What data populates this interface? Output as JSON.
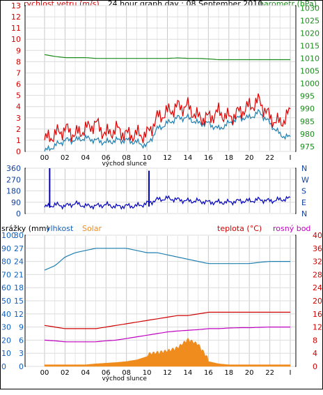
{
  "header": {
    "title": "24 hour graph day : 08 September 2010",
    "left_label": "rychlost vetru (m/s)",
    "right_label": "barometr (hPa)"
  },
  "panel3_labels": {
    "precip": "srážky (mm)",
    "humidity": "vlhkost",
    "solar": "Solar",
    "temp": "teplota (°C)",
    "dew": "rosný bod"
  },
  "x_axis": {
    "ticks": [
      "00",
      "02",
      "04",
      "06",
      "08",
      "10",
      "12",
      "14",
      "16",
      "18",
      "20",
      "22",
      "I"
    ],
    "sunrise_label": "východ slunce"
  },
  "colors": {
    "wind": "#e00000",
    "gust": "#1e7fb0",
    "baro": "#1a8a1a",
    "winddir": "#0000c0",
    "humidity": "#1e7fb0",
    "solar": "#f08c1e",
    "temp": "#d00000",
    "dew": "#c000c0",
    "grid": "#c8c8c8",
    "axis_red": "#d00000",
    "axis_green": "#1a8a1a",
    "axis_blue": "#1060c0"
  },
  "chart_data": [
    {
      "type": "line",
      "id": "wind_baro",
      "title": "24 hour graph day : 08 September 2010",
      "x": [
        0,
        1,
        2,
        3,
        4,
        5,
        6,
        7,
        8,
        9,
        10,
        11,
        12,
        13,
        14,
        15,
        16,
        17,
        18,
        19,
        20,
        21,
        22,
        23,
        24
      ],
      "y_left": {
        "label": "rychlost vetru (m/s)",
        "ticks": [
          "13",
          "12",
          "11",
          "10",
          "9",
          "8",
          "7",
          "6",
          "5",
          "4",
          "3",
          "2",
          "1",
          "0"
        ],
        "ylim": [
          0,
          13
        ]
      },
      "y_right": {
        "label": "barometr (hPa)",
        "ticks": [
          "1030",
          "1025",
          "1020",
          "1015",
          "1010",
          "1005",
          "1000",
          "995",
          "990",
          "985",
          "980",
          "975"
        ],
        "ylim": [
          973,
          1031
        ]
      },
      "series": [
        {
          "key": "wind",
          "axis": "left",
          "values": [
            1,
            1.5,
            2,
            1.5,
            2,
            2.5,
            1.5,
            2,
            1.5,
            1.5,
            1.5,
            3,
            3.5,
            4,
            4,
            3,
            3,
            3.5,
            3,
            3.5,
            4,
            4.5,
            3,
            2.5,
            3.5
          ]
        },
        {
          "key": "gust",
          "axis": "left",
          "values": [
            0,
            0.5,
            1,
            1,
            1.2,
            1,
            0.8,
            1,
            1,
            0.8,
            0.5,
            2,
            2.5,
            3,
            3,
            2.5,
            2.5,
            2,
            2.5,
            3,
            3,
            3.5,
            2.5,
            1.5,
            1.2
          ]
        },
        {
          "key": "baro",
          "axis": "right",
          "values": [
            1011.5,
            1010.8,
            1010.3,
            1010.3,
            1010.3,
            1010.0,
            1010.0,
            1010.0,
            1010.0,
            1010.0,
            1010.0,
            1010.0,
            1010.0,
            1010.2,
            1010.0,
            1010.0,
            1009.8,
            1009.5,
            1009.5,
            1009.5,
            1009.5,
            1009.5,
            1009.5,
            1009.5,
            1009.5
          ]
        }
      ]
    },
    {
      "type": "line",
      "id": "wind_direction",
      "x": [
        0,
        1,
        2,
        3,
        4,
        5,
        6,
        7,
        8,
        9,
        10,
        11,
        12,
        13,
        14,
        15,
        16,
        17,
        18,
        19,
        20,
        21,
        22,
        23,
        24
      ],
      "y_left": {
        "ticks": [
          "360",
          "270",
          "180",
          "90",
          "0"
        ],
        "ylim": [
          0,
          360
        ]
      },
      "y_right": {
        "ticks": [
          "N",
          "W",
          "S",
          "E",
          "N"
        ]
      },
      "series": [
        {
          "key": "winddir",
          "values": [
            50,
            70,
            60,
            80,
            60,
            60,
            70,
            55,
            60,
            60,
            80,
            110,
            120,
            110,
            100,
            100,
            90,
            90,
            90,
            100,
            100,
            110,
            100,
            110,
            120
          ],
          "spikes": [
            {
              "x": 0.5,
              "value": 360
            },
            {
              "x": 10.2,
              "value": 340
            }
          ]
        }
      ]
    },
    {
      "type": "line",
      "id": "climate",
      "x": [
        0,
        1,
        2,
        3,
        4,
        5,
        6,
        7,
        8,
        9,
        10,
        11,
        12,
        13,
        14,
        15,
        16,
        17,
        18,
        19,
        20,
        21,
        22,
        23,
        24
      ],
      "y_precip": {
        "label": "srážky (mm)",
        "ticks": [
          "100",
          "90",
          "80",
          "70",
          "60",
          "50",
          "40",
          "30",
          "20",
          "10",
          "0"
        ],
        "ylim": [
          0,
          100
        ]
      },
      "y_humidity": {
        "label": "vlhkost",
        "ticks": [
          "30",
          "27",
          "24",
          "21",
          "18",
          "15",
          "12",
          "9",
          "6",
          "3",
          "0"
        ],
        "ylim": [
          0,
          30
        ]
      },
      "y_temp_left": {
        "ticks": [
          "40",
          "36",
          "32",
          "28",
          "24",
          "20",
          "16",
          "12",
          "8",
          "4",
          "0"
        ],
        "ylim": [
          0,
          40
        ]
      },
      "y_temp_right": {
        "label": "teplota (°C)",
        "ticks": [
          "40",
          "36",
          "32",
          "28",
          "24",
          "20",
          "16",
          "12",
          "8",
          "4",
          "0"
        ],
        "ylim": [
          0,
          40
        ]
      },
      "series": [
        {
          "key": "humidity",
          "axis": "humidity",
          "values": [
            22,
            23,
            25,
            26,
            26.5,
            27,
            27,
            27,
            27,
            26.5,
            26,
            26,
            25.5,
            25,
            24.5,
            24,
            23.5,
            23.5,
            23.5,
            23.5,
            23.5,
            23.8,
            24,
            24,
            24
          ]
        },
        {
          "key": "temp",
          "axis": "temp",
          "values": [
            12.5,
            12,
            11.5,
            11.5,
            11.5,
            11.5,
            12,
            12.5,
            13,
            13.5,
            14,
            14.5,
            15,
            15.5,
            15.5,
            16,
            16.5,
            16.5,
            16.5,
            16.5,
            16.5,
            16.5,
            16.5,
            16.5,
            16.5
          ]
        },
        {
          "key": "dew",
          "axis": "temp",
          "values": [
            8,
            7.8,
            7.5,
            7.5,
            7.5,
            7.5,
            7.8,
            8,
            8.5,
            9,
            9.5,
            10,
            10.5,
            10.8,
            11,
            11.2,
            11.5,
            11.5,
            11.7,
            11.8,
            11.8,
            11.9,
            12,
            12,
            12
          ]
        },
        {
          "key": "solar",
          "axis": "temp",
          "values": [
            0.5,
            0.5,
            0.5,
            0.5,
            0.5,
            0.8,
            1,
            1.2,
            1.5,
            2,
            3,
            3.5,
            4,
            5,
            7.5,
            6,
            1.5,
            0.8,
            0.5,
            0.5,
            0.5,
            0.5,
            0.5,
            0.5,
            0.5
          ]
        }
      ]
    }
  ]
}
